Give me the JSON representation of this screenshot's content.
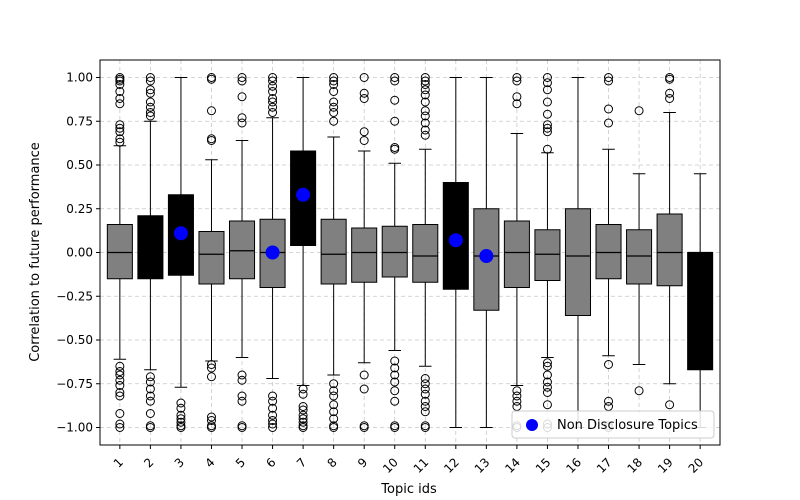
{
  "chart_data": {
    "type": "boxplot",
    "title": "",
    "xlabel": "Topic ids",
    "ylabel": "Correlation to future performance",
    "ylim": [
      -1.1,
      1.1
    ],
    "yticks": [
      -1.0,
      -0.75,
      -0.5,
      -0.25,
      0.0,
      0.25,
      0.5,
      0.75,
      1.0
    ],
    "ytick_labels": [
      "−1.00",
      "−0.75",
      "−0.50",
      "−0.25",
      "0.00",
      "0.25",
      "0.50",
      "0.75",
      "1.00"
    ],
    "categories": [
      "1",
      "2",
      "3",
      "4",
      "5",
      "6",
      "7",
      "8",
      "9",
      "10",
      "11",
      "12",
      "13",
      "14",
      "15",
      "16",
      "17",
      "18",
      "19",
      "20"
    ],
    "grid": true,
    "legend": {
      "position": "bottom-right",
      "label": "Non Disclosure Topics",
      "marker_color": "#0000ff"
    },
    "colors": {
      "gray_box": "#808080",
      "black_box": "#000000",
      "marker": "#0000ff",
      "grid": "#c8c8c8"
    },
    "boxes": [
      {
        "id": "1",
        "q1": -0.15,
        "median": 0.0,
        "q3": 0.16,
        "whisker_low": -0.61,
        "whisker_high": 0.61,
        "color": "gray",
        "outliers_high": [
          0.63,
          0.65,
          0.69,
          0.71,
          0.73,
          0.85,
          0.88,
          0.92,
          0.96,
          0.98,
          0.99,
          1.0
        ],
        "outliers_low": [
          -0.65,
          -0.68,
          -0.7,
          -0.73,
          -0.76,
          -0.8,
          -0.82,
          -0.92,
          -0.98,
          -1.0
        ]
      },
      {
        "id": "2",
        "q1": -0.15,
        "median": 0.0,
        "q3": 0.21,
        "whisker_low": -0.67,
        "whisker_high": 0.75,
        "color": "black",
        "outliers_high": [
          0.78,
          0.8,
          0.83,
          0.86,
          0.91,
          0.93,
          0.98,
          1.0
        ],
        "outliers_low": [
          -0.71,
          -0.74,
          -0.78,
          -0.82,
          -0.85,
          -0.92,
          -0.99,
          -1.0
        ]
      },
      {
        "id": "3",
        "q1": -0.13,
        "median": 0.12,
        "q3": 0.33,
        "whisker_low": -0.77,
        "whisker_high": 1.0,
        "color": "black",
        "non_disclosure_mean": 0.11,
        "outliers_high": [],
        "outliers_low": [
          -0.86,
          -0.89,
          -0.93,
          -0.95,
          -0.97,
          -0.99,
          -1.0
        ]
      },
      {
        "id": "4",
        "q1": -0.18,
        "median": -0.01,
        "q3": 0.12,
        "whisker_low": -0.62,
        "whisker_high": 0.53,
        "color": "gray",
        "outliers_high": [
          0.64,
          0.65,
          0.81,
          0.99,
          1.0
        ],
        "outliers_low": [
          -0.64,
          -0.66,
          -0.71,
          -0.94,
          -0.96,
          -0.99,
          -1.0
        ]
      },
      {
        "id": "5",
        "q1": -0.15,
        "median": 0.01,
        "q3": 0.18,
        "whisker_low": -0.6,
        "whisker_high": 0.64,
        "color": "gray",
        "outliers_high": [
          0.74,
          0.77,
          0.89,
          0.98,
          1.0
        ],
        "outliers_low": [
          -0.7,
          -0.73,
          -0.82,
          -0.85,
          -0.99,
          -1.0
        ]
      },
      {
        "id": "6",
        "q1": -0.2,
        "median": 0.0,
        "q3": 0.19,
        "whisker_low": -0.72,
        "whisker_high": 0.77,
        "color": "gray",
        "non_disclosure_mean": 0.0,
        "outliers_high": [
          0.8,
          0.83,
          0.86,
          0.88,
          0.92,
          0.95,
          0.98,
          1.0
        ],
        "outliers_low": [
          -0.82,
          -0.85,
          -0.89,
          -0.93,
          -0.96,
          -0.98,
          -1.0
        ]
      },
      {
        "id": "7",
        "q1": 0.04,
        "median": 0.33,
        "q3": 0.58,
        "whisker_low": -0.76,
        "whisker_high": 1.0,
        "color": "black",
        "non_disclosure_mean": 0.33,
        "outliers_high": [],
        "outliers_low": [
          -0.78,
          -0.81,
          -0.88,
          -0.9,
          -0.93,
          -0.95,
          -0.97,
          -0.99,
          -1.0
        ]
      },
      {
        "id": "8",
        "q1": -0.18,
        "median": -0.01,
        "q3": 0.19,
        "whisker_low": -0.7,
        "whisker_high": 0.66,
        "color": "gray",
        "outliers_high": [
          0.75,
          0.8,
          0.83,
          0.86,
          0.92,
          0.96,
          0.98,
          1.0
        ],
        "outliers_low": [
          -0.75,
          -0.79,
          -0.82,
          -0.87,
          -0.91,
          -0.95,
          -0.99,
          -1.0
        ]
      },
      {
        "id": "9",
        "q1": -0.17,
        "median": 0.0,
        "q3": 0.14,
        "whisker_low": -0.63,
        "whisker_high": 0.58,
        "color": "gray",
        "outliers_high": [
          0.64,
          0.69,
          0.88,
          0.91,
          1.0
        ],
        "outliers_low": [
          -0.7,
          -0.78,
          -0.99,
          -1.0
        ]
      },
      {
        "id": "10",
        "q1": -0.14,
        "median": 0.0,
        "q3": 0.15,
        "whisker_low": -0.56,
        "whisker_high": 0.51,
        "color": "gray",
        "outliers_high": [
          0.59,
          0.6,
          0.75,
          0.87,
          0.98,
          1.0
        ],
        "outliers_low": [
          -0.62,
          -0.66,
          -0.7,
          -0.74,
          -0.79,
          -0.85,
          -0.99,
          -1.0
        ]
      },
      {
        "id": "11",
        "q1": -0.17,
        "median": -0.02,
        "q3": 0.16,
        "whisker_low": -0.65,
        "whisker_high": 0.59,
        "color": "gray",
        "outliers_high": [
          0.67,
          0.7,
          0.74,
          0.78,
          0.81,
          0.86,
          0.9,
          0.93,
          0.96,
          0.98,
          1.0
        ],
        "outliers_low": [
          -0.72,
          -0.75,
          -0.78,
          -0.81,
          -0.85,
          -0.88,
          -0.91,
          -0.99,
          -1.0
        ]
      },
      {
        "id": "12",
        "q1": -0.21,
        "median": 0.08,
        "q3": 0.4,
        "whisker_low": -1.0,
        "whisker_high": 1.0,
        "color": "black",
        "non_disclosure_mean": 0.07,
        "outliers_high": [],
        "outliers_low": []
      },
      {
        "id": "13",
        "q1": -0.33,
        "median": -0.02,
        "q3": 0.25,
        "whisker_low": -1.0,
        "whisker_high": 1.0,
        "color": "gray",
        "non_disclosure_mean": -0.02,
        "outliers_high": [],
        "outliers_low": []
      },
      {
        "id": "14",
        "q1": -0.2,
        "median": 0.0,
        "q3": 0.18,
        "whisker_low": -0.76,
        "whisker_high": 0.68,
        "color": "gray",
        "outliers_high": [
          0.85,
          0.89,
          0.98,
          1.0
        ],
        "outliers_low": [
          -0.79,
          -0.82,
          -0.85,
          -0.88,
          -0.99,
          -1.0
        ]
      },
      {
        "id": "15",
        "q1": -0.16,
        "median": -0.01,
        "q3": 0.13,
        "whisker_low": -0.6,
        "whisker_high": 0.57,
        "color": "gray",
        "outliers_high": [
          0.59,
          0.69,
          0.71,
          0.73,
          0.79,
          0.86,
          0.93,
          0.97,
          1.0
        ],
        "outliers_low": [
          -0.63,
          -0.65,
          -0.7,
          -0.74,
          -0.77,
          -0.8,
          -0.87,
          -0.98,
          -1.0
        ]
      },
      {
        "id": "16",
        "q1": -0.36,
        "median": -0.02,
        "q3": 0.25,
        "whisker_low": -1.0,
        "whisker_high": 1.0,
        "color": "gray",
        "outliers_high": [],
        "outliers_low": []
      },
      {
        "id": "17",
        "q1": -0.15,
        "median": 0.0,
        "q3": 0.16,
        "whisker_low": -0.59,
        "whisker_high": 0.59,
        "color": "gray",
        "outliers_high": [
          0.74,
          0.82,
          0.98,
          1.0
        ],
        "outliers_low": [
          -0.64,
          -0.85,
          -0.88,
          -0.99,
          -1.0
        ]
      },
      {
        "id": "18",
        "q1": -0.18,
        "median": -0.02,
        "q3": 0.13,
        "whisker_low": -0.64,
        "whisker_high": 0.45,
        "color": "gray",
        "outliers_high": [
          0.81
        ],
        "outliers_low": [
          -0.79
        ]
      },
      {
        "id": "19",
        "q1": -0.19,
        "median": 0.0,
        "q3": 0.22,
        "whisker_low": -0.75,
        "whisker_high": 0.8,
        "color": "gray",
        "outliers_high": [
          0.88,
          0.91,
          0.99,
          1.0
        ],
        "outliers_low": [
          -0.87
        ]
      },
      {
        "id": "20",
        "q1": -0.67,
        "median": 0.0,
        "q3": 0.0,
        "whisker_low": -1.0,
        "whisker_high": 0.45,
        "color": "black",
        "outliers_high": [],
        "outliers_low": []
      }
    ]
  }
}
